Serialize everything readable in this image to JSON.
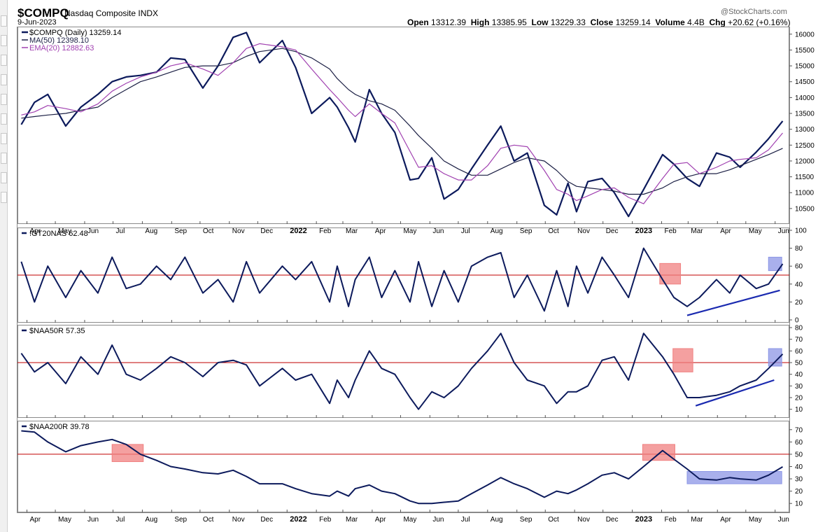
{
  "header": {
    "symbol": "$COMPQ",
    "name": "Nasdaq Composite INDX",
    "date": "9-Jun-2023",
    "copyright": "@StockCharts.com",
    "open_label": "Open",
    "open": "13312.39",
    "high_label": "High",
    "high": "13385.95",
    "low_label": "Low",
    "low": "13229.33",
    "close_label": "Close",
    "close": "13259.14",
    "volume_label": "Volume",
    "volume": "4.4B",
    "chg_label": "Chg",
    "chg": "+20.62 (+0.16%)"
  },
  "colors": {
    "price": "#0c1a5c",
    "ma50": "#1b1f44",
    "ema20": "#a040b0",
    "refline": "#c00000",
    "red_box": "#f08080",
    "blue_box": "#8c96e6",
    "trend": "#1a2ab0"
  },
  "chart_data": [
    {
      "type": "line",
      "panel": "price",
      "legend": [
        "$COMPQ (Daily) 13259.14",
        "MA(50) 12398.10",
        "EMA(20) 12882.63"
      ],
      "ylim": [
        10100,
        16150
      ],
      "yticks": [
        10500,
        11000,
        11500,
        12000,
        12500,
        13000,
        13500,
        14000,
        14500,
        15000,
        15500,
        16000
      ],
      "x": [
        "2021-03-26",
        "2021-04-09",
        "2021-04-23",
        "2021-05-12",
        "2021-05-28",
        "2021-06-15",
        "2021-06-30",
        "2021-07-15",
        "2021-07-30",
        "2021-08-16",
        "2021-08-31",
        "2021-09-15",
        "2021-10-04",
        "2021-10-20",
        "2021-11-05",
        "2021-11-19",
        "2021-12-03",
        "2021-12-27",
        "2022-01-10",
        "2022-01-27",
        "2022-02-15",
        "2022-02-23",
        "2022-03-07",
        "2022-03-14",
        "2022-03-29",
        "2022-04-11",
        "2022-04-25",
        "2022-05-11",
        "2022-05-20",
        "2022-06-03",
        "2022-06-16",
        "2022-07-01",
        "2022-07-15",
        "2022-08-01",
        "2022-08-15",
        "2022-08-29",
        "2022-09-12",
        "2022-09-30",
        "2022-10-13",
        "2022-10-25",
        "2022-11-03",
        "2022-11-15",
        "2022-11-30",
        "2022-12-13",
        "2022-12-28",
        "2023-01-13",
        "2023-02-02",
        "2023-02-14",
        "2023-02-28",
        "2023-03-13",
        "2023-03-31",
        "2023-04-14",
        "2023-04-25",
        "2023-05-12",
        "2023-05-25",
        "2023-06-09"
      ],
      "series": [
        {
          "name": "$COMPQ",
          "values": [
            13150,
            13850,
            14100,
            13100,
            13700,
            14100,
            14500,
            14650,
            14700,
            14800,
            15250,
            15200,
            14300,
            15000,
            15900,
            16050,
            15100,
            15800,
            14950,
            13500,
            14000,
            13700,
            13050,
            12600,
            14250,
            13500,
            12900,
            11400,
            11450,
            12100,
            10800,
            11100,
            11750,
            12500,
            13100,
            12000,
            12250,
            10600,
            10300,
            11300,
            10400,
            11350,
            11450,
            11000,
            10250,
            11100,
            12200,
            11900,
            11450,
            11200,
            12250,
            12120,
            11800,
            12280,
            12700,
            13259
          ]
        },
        {
          "name": "MA(50)",
          "values": [
            13350,
            13400,
            13450,
            13500,
            13600,
            13700,
            14000,
            14250,
            14500,
            14650,
            14800,
            14950,
            15000,
            15000,
            15100,
            15300,
            15450,
            15550,
            15450,
            15250,
            14900,
            14600,
            14250,
            14100,
            13900,
            13800,
            13600,
            13100,
            12800,
            12400,
            12000,
            11750,
            11550,
            11550,
            11750,
            11950,
            12100,
            12000,
            11700,
            11350,
            11200,
            11150,
            11100,
            11050,
            10950,
            10950,
            11150,
            11350,
            11500,
            11600,
            11600,
            11720,
            11850,
            12050,
            12200,
            12398
          ]
        },
        {
          "name": "EMA(20)",
          "values": [
            13450,
            13550,
            13750,
            13650,
            13550,
            13800,
            14200,
            14450,
            14650,
            14800,
            15000,
            15100,
            14900,
            14700,
            15100,
            15550,
            15700,
            15600,
            15500,
            14900,
            14250,
            14000,
            13600,
            13400,
            13800,
            13500,
            13200,
            12300,
            11800,
            11850,
            11600,
            11400,
            11400,
            11850,
            12400,
            12500,
            12450,
            11700,
            11100,
            10950,
            10750,
            10900,
            11100,
            11150,
            10850,
            10650,
            11450,
            11900,
            11950,
            11600,
            11800,
            12000,
            12050,
            12100,
            12350,
            12883
          ]
        }
      ]
    },
    {
      "type": "line",
      "panel": "gt20",
      "legend": [
        "!GT20NAS 62.48"
      ],
      "ylim": [
        0,
        100
      ],
      "yticks": [
        0,
        20,
        40,
        60,
        80,
        100
      ],
      "reference_line": 50,
      "x": [
        "2021-03-26",
        "2021-04-09",
        "2021-04-23",
        "2021-05-12",
        "2021-05-28",
        "2021-06-15",
        "2021-06-30",
        "2021-07-15",
        "2021-07-30",
        "2021-08-16",
        "2021-08-31",
        "2021-09-15",
        "2021-10-04",
        "2021-10-20",
        "2021-11-05",
        "2021-11-19",
        "2021-12-03",
        "2021-12-27",
        "2022-01-10",
        "2022-01-27",
        "2022-02-15",
        "2022-02-23",
        "2022-03-07",
        "2022-03-14",
        "2022-03-29",
        "2022-04-11",
        "2022-04-25",
        "2022-05-11",
        "2022-05-20",
        "2022-06-03",
        "2022-06-16",
        "2022-07-01",
        "2022-07-15",
        "2022-08-01",
        "2022-08-15",
        "2022-08-29",
        "2022-09-12",
        "2022-09-30",
        "2022-10-13",
        "2022-10-25",
        "2022-11-03",
        "2022-11-15",
        "2022-11-30",
        "2022-12-13",
        "2022-12-28",
        "2023-01-13",
        "2023-02-02",
        "2023-02-14",
        "2023-02-28",
        "2023-03-13",
        "2023-03-31",
        "2023-04-14",
        "2023-04-25",
        "2023-05-12",
        "2023-05-25",
        "2023-06-09"
      ],
      "series": [
        {
          "name": "!GT20NAS",
          "values": [
            65,
            20,
            60,
            25,
            55,
            30,
            70,
            35,
            40,
            60,
            45,
            70,
            30,
            45,
            20,
            65,
            30,
            60,
            45,
            65,
            20,
            60,
            15,
            45,
            70,
            25,
            55,
            20,
            65,
            15,
            55,
            20,
            60,
            70,
            75,
            25,
            50,
            10,
            55,
            15,
            60,
            30,
            70,
            50,
            25,
            80,
            45,
            25,
            15,
            25,
            45,
            30,
            50,
            35,
            40,
            62.48
          ]
        }
      ]
    },
    {
      "type": "line",
      "panel": "naa50",
      "legend": [
        "$NAA50R 57.35"
      ],
      "ylim": [
        5,
        80
      ],
      "yticks": [
        10,
        20,
        30,
        40,
        50,
        60,
        70,
        80
      ],
      "reference_line": 50,
      "x": [
        "2021-03-26",
        "2021-04-09",
        "2021-04-23",
        "2021-05-12",
        "2021-05-28",
        "2021-06-15",
        "2021-06-30",
        "2021-07-15",
        "2021-07-30",
        "2021-08-16",
        "2021-08-31",
        "2021-09-15",
        "2021-10-04",
        "2021-10-20",
        "2021-11-05",
        "2021-11-19",
        "2021-12-03",
        "2021-12-27",
        "2022-01-10",
        "2022-01-27",
        "2022-02-15",
        "2022-02-23",
        "2022-03-07",
        "2022-03-14",
        "2022-03-29",
        "2022-04-11",
        "2022-04-25",
        "2022-05-11",
        "2022-05-20",
        "2022-06-03",
        "2022-06-16",
        "2022-07-01",
        "2022-07-15",
        "2022-08-01",
        "2022-08-15",
        "2022-08-29",
        "2022-09-12",
        "2022-09-30",
        "2022-10-13",
        "2022-10-25",
        "2022-11-03",
        "2022-11-15",
        "2022-11-30",
        "2022-12-13",
        "2022-12-28",
        "2023-01-13",
        "2023-02-02",
        "2023-02-14",
        "2023-02-28",
        "2023-03-13",
        "2023-03-31",
        "2023-04-14",
        "2023-04-25",
        "2023-05-12",
        "2023-05-25",
        "2023-06-09"
      ],
      "series": [
        {
          "name": "$NAA50R",
          "values": [
            58,
            42,
            50,
            32,
            55,
            40,
            65,
            40,
            35,
            45,
            55,
            50,
            38,
            50,
            52,
            48,
            30,
            45,
            35,
            40,
            15,
            35,
            20,
            35,
            60,
            45,
            40,
            20,
            10,
            25,
            20,
            30,
            45,
            60,
            75,
            50,
            35,
            30,
            15,
            25,
            25,
            30,
            52,
            55,
            35,
            75,
            55,
            40,
            20,
            20,
            22,
            25,
            30,
            35,
            45,
            57.35
          ]
        }
      ]
    },
    {
      "type": "line",
      "panel": "naa200",
      "legend": [
        "$NAA200R 39.78"
      ],
      "ylim": [
        5,
        75
      ],
      "yticks": [
        10,
        20,
        30,
        40,
        50,
        60,
        70
      ],
      "reference_line": 50,
      "x": [
        "2021-03-26",
        "2021-04-09",
        "2021-04-23",
        "2021-05-12",
        "2021-05-28",
        "2021-06-15",
        "2021-06-30",
        "2021-07-15",
        "2021-07-30",
        "2021-08-16",
        "2021-08-31",
        "2021-09-15",
        "2021-10-04",
        "2021-10-20",
        "2021-11-05",
        "2021-11-19",
        "2021-12-03",
        "2021-12-27",
        "2022-01-10",
        "2022-01-27",
        "2022-02-15",
        "2022-02-23",
        "2022-03-07",
        "2022-03-14",
        "2022-03-29",
        "2022-04-11",
        "2022-04-25",
        "2022-05-11",
        "2022-05-20",
        "2022-06-03",
        "2022-06-16",
        "2022-07-01",
        "2022-07-15",
        "2022-08-01",
        "2022-08-15",
        "2022-08-29",
        "2022-09-12",
        "2022-09-30",
        "2022-10-13",
        "2022-10-25",
        "2022-11-03",
        "2022-11-15",
        "2022-11-30",
        "2022-12-13",
        "2022-12-28",
        "2023-01-13",
        "2023-02-02",
        "2023-02-14",
        "2023-02-28",
        "2023-03-13",
        "2023-03-31",
        "2023-04-14",
        "2023-04-25",
        "2023-05-12",
        "2023-05-25",
        "2023-06-09"
      ],
      "series": [
        {
          "name": "$NAA200R",
          "values": [
            69,
            68,
            60,
            52,
            57,
            60,
            62,
            58,
            50,
            45,
            40,
            38,
            35,
            34,
            37,
            32,
            26,
            26,
            22,
            18,
            16,
            20,
            16,
            22,
            25,
            20,
            18,
            12,
            10,
            10,
            11,
            12,
            18,
            25,
            31,
            26,
            22,
            15,
            20,
            18,
            21,
            26,
            33,
            35,
            30,
            40,
            53,
            46,
            38,
            30,
            29,
            31,
            30,
            29,
            33,
            39.78
          ]
        }
      ]
    }
  ],
  "x_axis": {
    "ticks": [
      {
        "date": "2021-04-01",
        "label": "Apr"
      },
      {
        "date": "2021-05-01",
        "label": "May"
      },
      {
        "date": "2021-06-01",
        "label": "Jun"
      },
      {
        "date": "2021-07-01",
        "label": "Jul"
      },
      {
        "date": "2021-08-01",
        "label": "Aug"
      },
      {
        "date": "2021-09-01",
        "label": "Sep"
      },
      {
        "date": "2021-10-01",
        "label": "Oct"
      },
      {
        "date": "2021-11-01",
        "label": "Nov"
      },
      {
        "date": "2021-12-01",
        "label": "Dec"
      },
      {
        "date": "2022-01-01",
        "label": "2022",
        "bold": true
      },
      {
        "date": "2022-02-01",
        "label": "Feb"
      },
      {
        "date": "2022-03-01",
        "label": "Mar"
      },
      {
        "date": "2022-04-01",
        "label": "Apr"
      },
      {
        "date": "2022-05-01",
        "label": "May"
      },
      {
        "date": "2022-06-01",
        "label": "Jun"
      },
      {
        "date": "2022-07-01",
        "label": "Jul"
      },
      {
        "date": "2022-08-01",
        "label": "Aug"
      },
      {
        "date": "2022-09-01",
        "label": "Sep"
      },
      {
        "date": "2022-10-01",
        "label": "Oct"
      },
      {
        "date": "2022-11-01",
        "label": "Nov"
      },
      {
        "date": "2022-12-01",
        "label": "Dec"
      },
      {
        "date": "2023-01-01",
        "label": "2023",
        "bold": true
      },
      {
        "date": "2023-02-01",
        "label": "Feb"
      },
      {
        "date": "2023-03-01",
        "label": "Mar"
      },
      {
        "date": "2023-04-01",
        "label": "Apr"
      },
      {
        "date": "2023-05-01",
        "label": "May"
      },
      {
        "date": "2023-06-01",
        "label": "Jun"
      }
    ]
  },
  "annotations": {
    "red_boxes": [
      {
        "panel": "gt20",
        "x": [
          "2023-01-30",
          "2023-02-21"
        ],
        "y": [
          40,
          63
        ]
      },
      {
        "panel": "naa50",
        "x": [
          "2023-02-13",
          "2023-03-06"
        ],
        "y": [
          42,
          62
        ]
      },
      {
        "panel": "naa200",
        "x": [
          "2021-06-30",
          "2021-08-02"
        ],
        "y": [
          44,
          58
        ]
      },
      {
        "panel": "naa200",
        "x": [
          "2023-01-12",
          "2023-02-15"
        ],
        "y": [
          45,
          58
        ]
      }
    ],
    "blue_boxes": [
      {
        "panel": "gt20",
        "x": [
          "2023-05-25",
          "2023-06-08"
        ],
        "y": [
          55,
          70
        ]
      },
      {
        "panel": "naa50",
        "x": [
          "2023-05-25",
          "2023-06-08"
        ],
        "y": [
          47,
          62
        ]
      },
      {
        "panel": "naa200",
        "x": [
          "2023-02-28",
          "2023-06-08"
        ],
        "y": [
          26,
          36
        ]
      }
    ],
    "trend_lines": [
      {
        "panel": "gt20",
        "x": [
          "2023-02-28",
          "2023-06-06"
        ],
        "y": [
          5,
          33
        ]
      },
      {
        "panel": "naa50",
        "x": [
          "2023-03-09",
          "2023-05-31"
        ],
        "y": [
          13,
          35
        ]
      }
    ]
  }
}
